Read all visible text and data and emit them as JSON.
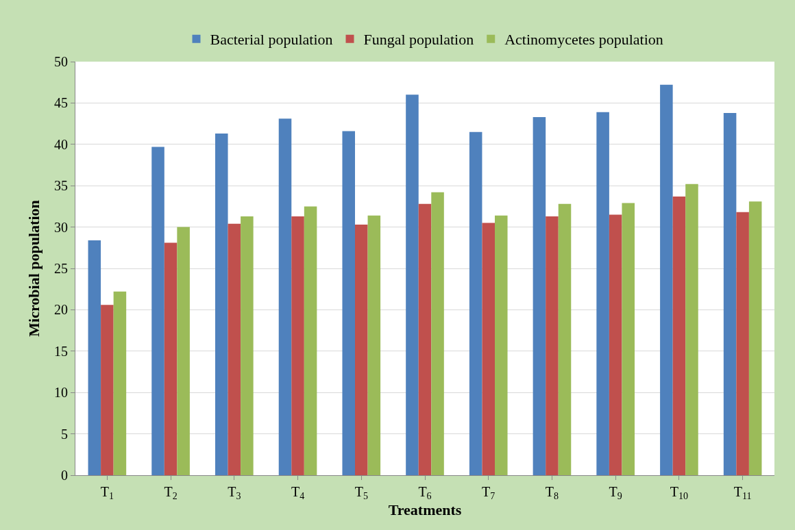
{
  "chart_data": {
    "type": "bar",
    "xlabel": "Treatments",
    "ylabel": "Microbial population",
    "categories": [
      "T$_{1}$",
      "T$_{2}$",
      "T$_{3}$",
      "T$_{4}$",
      "T$_{5}$",
      "T$_{6}$",
      "T$_{7}$",
      "T$_{8}$",
      "T$_{9}$",
      "T$_{10}$",
      "T$_{11}$"
    ],
    "series": [
      {
        "name": "Bacterial population",
        "color": "#4f81bd",
        "values": [
          28.4,
          39.7,
          41.3,
          43.1,
          41.6,
          46.0,
          41.5,
          43.3,
          43.9,
          47.2,
          43.8
        ]
      },
      {
        "name": "Fungal population",
        "color": "#c0504d",
        "values": [
          20.6,
          28.1,
          30.4,
          31.3,
          30.3,
          32.8,
          30.5,
          31.3,
          31.5,
          33.7,
          31.8
        ]
      },
      {
        "name": "Actinomycetes population",
        "color": "#9bbb59",
        "values": [
          22.2,
          30.0,
          31.3,
          32.5,
          31.4,
          34.2,
          31.4,
          32.8,
          32.9,
          35.2,
          33.1
        ]
      }
    ],
    "ylim": [
      0,
      50
    ],
    "yticks": [
      0,
      5,
      10,
      15,
      20,
      25,
      30,
      35,
      40,
      45,
      50
    ],
    "grid": "y",
    "legend": "top"
  }
}
